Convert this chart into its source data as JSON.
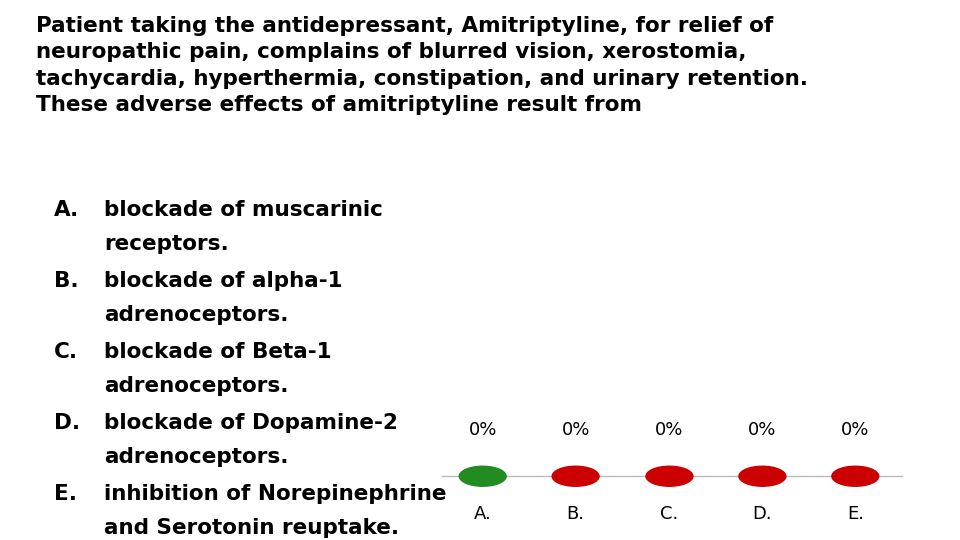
{
  "background_color": "#ffffff",
  "question_text": "Patient taking the antidepressant, Amitriptyline, for relief of\nneuropathic pain, complains of blurred vision, xerostomia,\ntachycardia, hyperthermia, constipation, and urinary retention.\nThese adverse effects of amitriptyline result from",
  "options": [
    {
      "label": "A.",
      "line1": "blockade of muscarinic",
      "line2": "receptors."
    },
    {
      "label": "B.",
      "line1": "blockade of alpha-1",
      "line2": "adrenoceptors."
    },
    {
      "label": "C.",
      "line1": "blockade of Beta-1",
      "line2": "adrenoceptors."
    },
    {
      "label": "D.",
      "line1": "blockade of Dopamine-2",
      "line2": "adrenoceptors."
    },
    {
      "label": "E.",
      "line1": "inhibition of Norepinephrine",
      "line2": "and Serotonin reuptake."
    }
  ],
  "bar_labels": [
    "A.",
    "B.",
    "C.",
    "D.",
    "E."
  ],
  "bar_values": [
    "0%",
    "0%",
    "0%",
    "0%",
    "0%"
  ],
  "dot_colors": [
    "#228B22",
    "#cc0000",
    "#cc0000",
    "#cc0000",
    "#cc0000"
  ],
  "line_color": "#bbbbbb",
  "text_color": "#000000",
  "question_fontsize": 15.5,
  "option_fontsize": 15.5,
  "bar_label_fontsize": 13,
  "bar_value_fontsize": 13
}
